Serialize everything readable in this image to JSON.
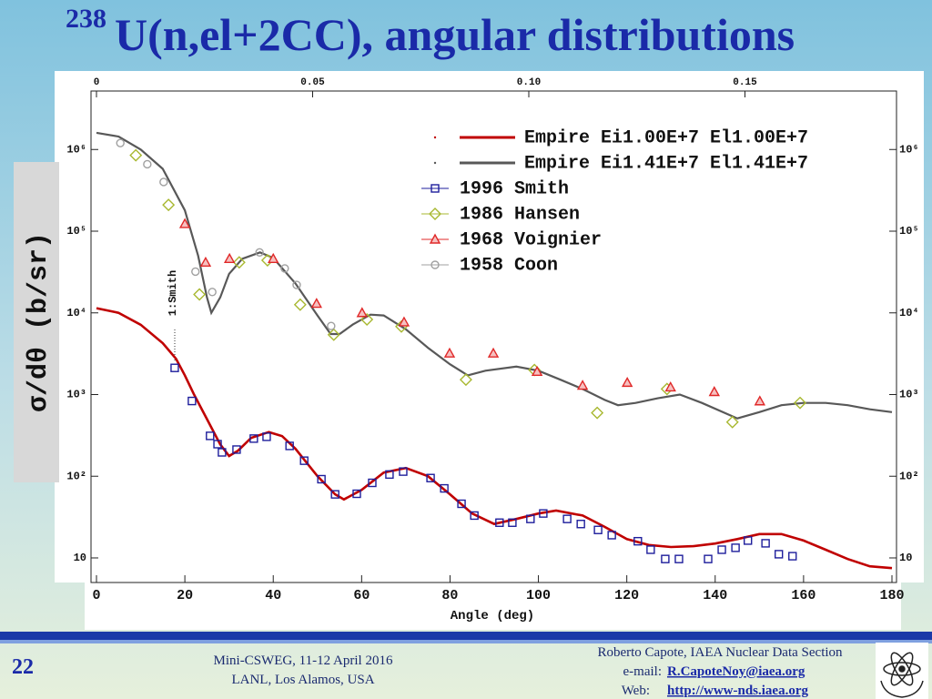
{
  "slide": {
    "title_sup": "238",
    "title": "U(n,el+2CC), angular distributions"
  },
  "chart_data": {
    "type": "scatter",
    "log_y": true,
    "legend": "upper right",
    "xlabel": "Angle (deg)",
    "ylabel": "σ/dθ (b/sr)",
    "annotation": "1:Smith",
    "xlim": [
      0,
      180
    ],
    "xticks": [
      0,
      20,
      40,
      60,
      80,
      100,
      120,
      140,
      160,
      180
    ],
    "x2lim": [
      0,
      0.184
    ],
    "x2ticks": [
      0,
      0.05,
      {
        "value": 0.1,
        "label": "0.10"
      },
      0.15
    ],
    "ylim": [
      5,
      5200000
    ],
    "yticks": [
      10,
      {
        "value": 100,
        "label": "10²"
      },
      {
        "value": 1000,
        "label": "10³"
      },
      {
        "value": 10000,
        "label": "10⁴"
      },
      {
        "value": 100000,
        "label": "10⁵"
      },
      {
        "value": 1000000,
        "label": "10⁶"
      }
    ],
    "series": [
      {
        "name": "Empire Ei1.00E+7 El1.00E+7",
        "type": "line",
        "color": "#c00000",
        "x": [
          0,
          5,
          10,
          15,
          18,
          20,
          22,
          25,
          28,
          30,
          32,
          35,
          39,
          42,
          45,
          50,
          54,
          56,
          60,
          65,
          70,
          75,
          80,
          85,
          90,
          95,
          100,
          104,
          110,
          115,
          120,
          125,
          130,
          135,
          140,
          145,
          150,
          155,
          160,
          165,
          170,
          175,
          180
        ],
        "values": [
          11400,
          10000,
          7150,
          4260,
          2740,
          1720,
          1020,
          500,
          245,
          177,
          205,
          295,
          347,
          310,
          218,
          100,
          60,
          52,
          68,
          111,
          126,
          100,
          60,
          35,
          26,
          30,
          35,
          38,
          33,
          24,
          17,
          14.4,
          13.6,
          13.9,
          15,
          17,
          19.6,
          19.6,
          16.3,
          12.6,
          9.7,
          7.9,
          7.5
        ]
      },
      {
        "name": "Empire Ei1.41E+7 El1.41E+7",
        "type": "line",
        "color": "#585858",
        "x": [
          0,
          5,
          10,
          15,
          20,
          23,
          25,
          26,
          28,
          30,
          33,
          37,
          40,
          45,
          50,
          53,
          55,
          58,
          62,
          65,
          70,
          75,
          80,
          84,
          88,
          95,
          100,
          105,
          110,
          115,
          118,
          122,
          127,
          132,
          137,
          145,
          150,
          155,
          160,
          165,
          170,
          175,
          180
        ],
        "values": [
          1600000,
          1440000,
          1000000,
          580000,
          180000,
          50000,
          15500,
          10000,
          15500,
          30000,
          46000,
          55000,
          47000,
          23000,
          9300,
          5500,
          5500,
          7200,
          9500,
          9300,
          6300,
          3740,
          2350,
          1720,
          1960,
          2200,
          1960,
          1520,
          1170,
          860,
          740,
          790,
          900,
          1000,
          790,
          510,
          610,
          740,
          790,
          790,
          740,
          660,
          610
        ]
      },
      {
        "name": "1996 Smith",
        "type": "scatter",
        "marker": "square",
        "color": "#1e1e9c",
        "x": [
          17.7,
          21.6,
          25.7,
          27.4,
          28.4,
          31.7,
          35.6,
          38.5,
          43.7,
          47.0,
          50.9,
          54.0,
          58.9,
          62.4,
          66.3,
          69.4,
          75.6,
          78.7,
          82.6,
          85.5,
          91.2,
          94.1,
          98.2,
          101.1,
          106.5,
          109.6,
          113.5,
          116.6,
          122.5,
          125.4,
          128.7,
          131.8,
          138.4,
          141.5,
          144.6,
          147.4,
          151.4,
          154.4,
          157.5
        ],
        "values": [
          2120,
          834,
          312,
          247,
          196,
          212,
          289,
          304,
          235,
          155,
          92,
          60,
          61,
          83,
          105,
          114,
          95,
          71,
          46,
          33,
          27,
          27,
          30,
          35,
          30,
          26,
          22,
          19,
          16,
          12.6,
          9.7,
          9.7,
          9.7,
          12.6,
          13.3,
          16.3,
          15.1,
          11.1,
          10.5
        ]
      },
      {
        "name": "1986 Hansen",
        "type": "scatter",
        "marker": "diamond",
        "color": "#a8b830",
        "x": [
          8.9,
          16.3,
          23.3,
          32.3,
          38.7,
          46.1,
          53.7,
          61.2,
          69.0,
          83.6,
          99.1,
          113.3,
          129.1,
          143.9,
          159.2
        ],
        "values": [
          850000,
          210000,
          16800,
          41500,
          44000,
          12600,
          5400,
          8300,
          6800,
          1520,
          2000,
          596,
          1170,
          460,
          790
        ]
      },
      {
        "name": "1968 Voignier",
        "type": "scatter",
        "marker": "triangle",
        "color": "#e02828",
        "x": [
          20.0,
          24.7,
          30.1,
          40.0,
          49.8,
          60.1,
          69.6,
          79.9,
          89.8,
          99.7,
          110.0,
          120.1,
          129.9,
          139.8,
          150.1
        ],
        "values": [
          123000,
          41500,
          46000,
          46000,
          13000,
          10000,
          7700,
          3200,
          3200,
          1910,
          1290,
          1400,
          1230,
          1080,
          830
        ]
      },
      {
        "name": "1958 Coon",
        "type": "scatter",
        "marker": "circle",
        "color": "#a0a0a0",
        "x": [
          5.4,
          11.5,
          15.2,
          22.4,
          26.2,
          36.9,
          42.6,
          45.3,
          53.1
        ],
        "values": [
          1200000,
          660000,
          400000,
          32000,
          18000,
          55000,
          35000,
          22000,
          6900
        ]
      }
    ]
  },
  "footer": {
    "page": "22",
    "event": [
      "Mini-CSWEG, 11-12 April 2016",
      "LANL, Los Alamos, USA"
    ],
    "author": "Roberto Capote, IAEA Nuclear Data Section",
    "email_label": "e-mail:",
    "email": "R.CapoteNoy@iaea.org",
    "web_label": "Web:",
    "web": "http://www-nds.iaea.org"
  }
}
